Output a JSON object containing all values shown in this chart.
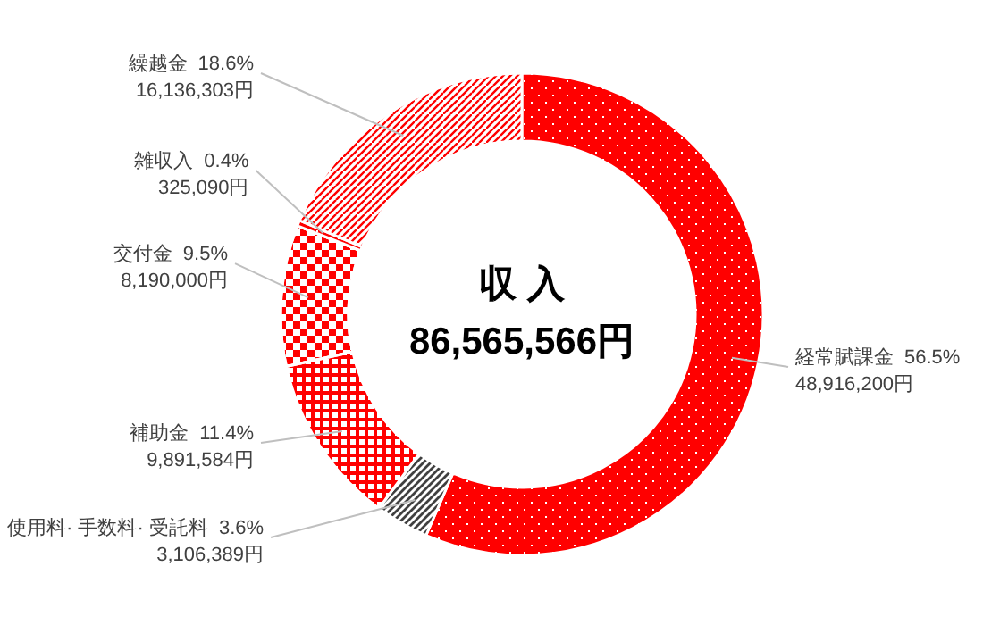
{
  "chart_data": {
    "type": "donut",
    "title": "収 入",
    "subtitle": "86,565,566円",
    "categories": [
      "経常賦課金",
      "使用料· 手数料· 受託料",
      "補助金",
      "交付金",
      "雑収入",
      "繰越金"
    ],
    "values": [
      48916200,
      3106389,
      9891584,
      8190000,
      325090,
      16136303
    ],
    "colors": [
      "#ff0000",
      "#404040",
      "#ff0000",
      "#ff0000",
      "#ff0000",
      "#ff0000"
    ],
    "value_labels": [
      "48,916,200円",
      "3,106,389円",
      "9,891,584円",
      "8,190,000円",
      "325,090円",
      "16,136,303円"
    ],
    "annotations": [
      {
        "text": "56.5%",
        "x": "経常賦課金"
      },
      {
        "text": "3.6%",
        "x": "使用料· 手数料· 受託料"
      },
      {
        "text": "11.4%",
        "x": "補助金"
      },
      {
        "text": "9.5%",
        "x": "交付金"
      },
      {
        "text": "0.4%",
        "x": "雑収入"
      },
      {
        "text": "18.6%",
        "x": "繰越金"
      }
    ],
    "legend": false
  }
}
